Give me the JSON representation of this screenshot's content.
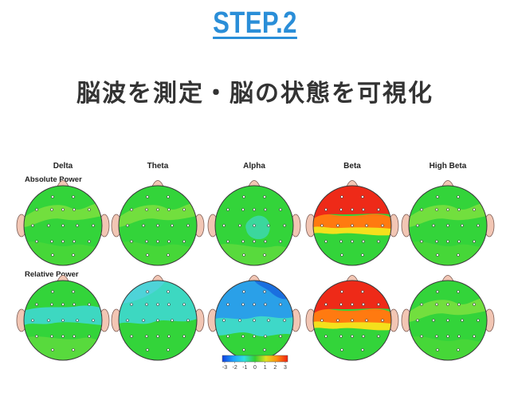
{
  "header": {
    "step_label": "STEP.2",
    "headline": "脳波を測定・脳の状態を可視化"
  },
  "figure": {
    "bands": [
      "Delta",
      "Theta",
      "Alpha",
      "Beta",
      "High Beta"
    ],
    "rows": [
      {
        "label": "Absolute Power",
        "maps": [
          "green",
          "green",
          "green-cyan",
          "red-front",
          "green"
        ]
      },
      {
        "label": "Relative Power",
        "maps": [
          "cyan-band",
          "cyan-front",
          "blue-front",
          "red-front",
          "green"
        ]
      }
    ],
    "colorbar": {
      "ticks": [
        "-3",
        "-2",
        "-1",
        "0",
        "1",
        "2",
        "3"
      ],
      "colors": [
        "#1040e0",
        "#20a0ff",
        "#30e0e0",
        "#30d030",
        "#e0e020",
        "#ff9010",
        "#f02010"
      ]
    },
    "palette": {
      "green": "#33d43a",
      "light_green": "#7ee040",
      "cyan": "#3ed8c8",
      "blue": "#2aa0e8",
      "red": "#ee2a18",
      "orange": "#ff7a10",
      "yellow": "#ffe01a",
      "ear": "#f2c6b4"
    }
  }
}
